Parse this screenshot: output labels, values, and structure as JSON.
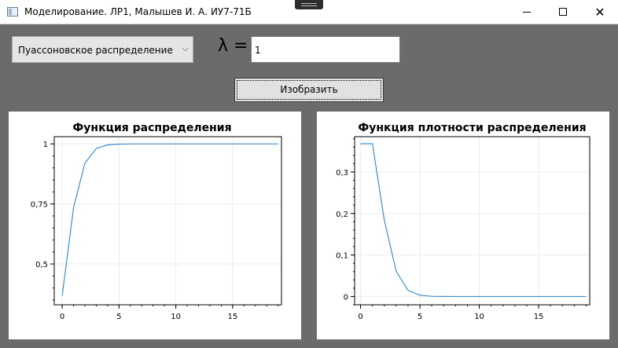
{
  "window": {
    "title": "Моделирование. ЛР1, Малышев И. А. ИУ7-71Б",
    "minimize_glyph": "",
    "close_glyph": "✕"
  },
  "controls": {
    "distribution_selected": "Пуассоновское распределение",
    "lambda_label": "λ =",
    "lambda_value": "1",
    "draw_button": "Изобразить"
  },
  "chart_data": [
    {
      "type": "line",
      "title": "Функция распределения",
      "x": [
        0,
        1,
        2,
        3,
        4,
        5,
        6,
        7,
        8,
        9,
        10,
        11,
        12,
        13,
        14,
        15,
        16,
        17,
        18,
        19
      ],
      "series": [
        {
          "values": [
            0.368,
            0.736,
            0.92,
            0.981,
            0.996,
            0.999,
            1,
            1,
            1,
            1,
            1,
            1,
            1,
            1,
            1,
            1,
            1,
            1,
            1,
            1
          ]
        }
      ],
      "xlim": [
        -0.7,
        19.3
      ],
      "ylim": [
        0.33,
        1.03
      ],
      "xticks": [
        0,
        5,
        10,
        15
      ],
      "xtick_labels": [
        "0",
        "5",
        "10",
        "15"
      ],
      "yticks": [
        0.5,
        0.75,
        1
      ],
      "ytick_labels": [
        "0,5",
        "0,75",
        "1"
      ],
      "grid": true,
      "color": "#3c8fd1"
    },
    {
      "type": "line",
      "title": "Функция плотности распределения",
      "x": [
        0,
        1,
        2,
        3,
        4,
        5,
        6,
        7,
        8,
        9,
        10,
        11,
        12,
        13,
        14,
        15,
        16,
        17,
        18,
        19
      ],
      "series": [
        {
          "values": [
            0.368,
            0.368,
            0.184,
            0.061,
            0.015,
            0.003,
            0.0005,
            0.0001,
            0,
            0,
            0,
            0,
            0,
            0,
            0,
            0,
            0,
            0,
            0,
            0
          ]
        }
      ],
      "xlim": [
        -0.5,
        19.3
      ],
      "ylim": [
        -0.02,
        0.385
      ],
      "xticks": [
        0,
        5,
        10,
        15
      ],
      "xtick_labels": [
        "0",
        "5",
        "10",
        "15"
      ],
      "yticks": [
        0,
        0.1,
        0.2,
        0.3
      ],
      "ytick_labels": [
        "0",
        "0,1",
        "0,2",
        "0,3"
      ],
      "grid": true,
      "color": "#3c8fd1"
    }
  ]
}
